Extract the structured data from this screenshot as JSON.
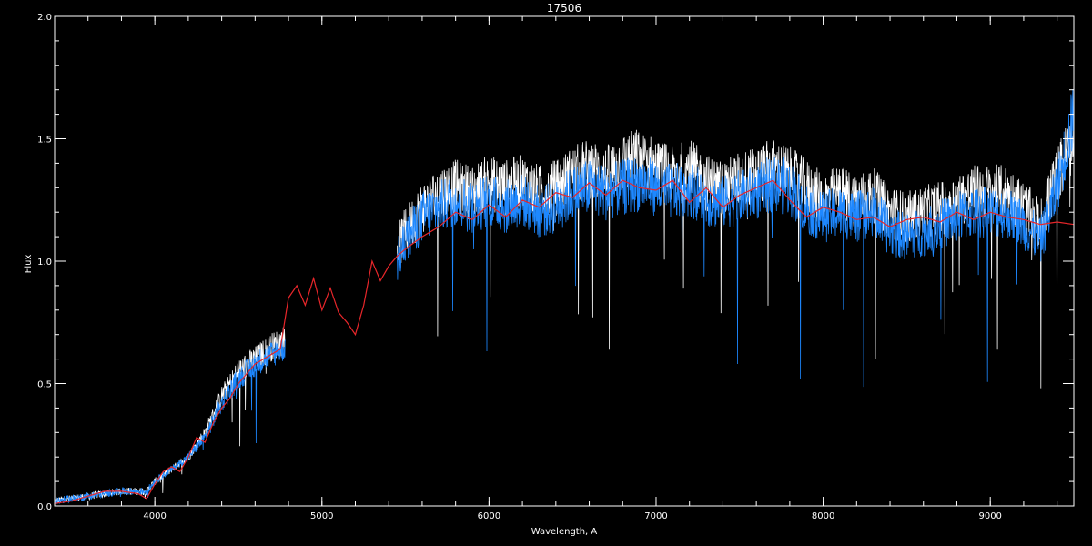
{
  "chart_data": {
    "type": "line",
    "title": "17506",
    "xlabel": "Wavelength, A",
    "ylabel": "Flux",
    "xlim": [
      3400,
      9500
    ],
    "ylim": [
      0.0,
      2.0
    ],
    "x_ticks": [
      4000,
      5000,
      6000,
      7000,
      8000,
      9000
    ],
    "x_tick_labels": [
      "4000",
      "5000",
      "6000",
      "7000",
      "8000",
      "9000"
    ],
    "y_ticks": [
      0.0,
      0.5,
      1.0,
      1.5,
      2.0
    ],
    "y_tick_labels": [
      "0.0",
      "0.5",
      "1.0",
      "1.5",
      "2.0"
    ],
    "grid": false,
    "background": "#000000",
    "series": [
      {
        "color": "#ffffff",
        "style": "noisy-spectrum",
        "x": [
          3400,
          3600,
          3800,
          3950,
          4000,
          4100,
          4200,
          4300,
          4400,
          4500,
          4600,
          4700,
          4780,
          5450,
          5500,
          5600,
          5700,
          5800,
          5900,
          6000,
          6100,
          6200,
          6300,
          6400,
          6500,
          6600,
          6700,
          6800,
          6900,
          7000,
          7100,
          7200,
          7300,
          7400,
          7500,
          7600,
          7700,
          7800,
          7900,
          8000,
          8100,
          8200,
          8300,
          8400,
          8500,
          8600,
          8700,
          8800,
          8900,
          9000,
          9100,
          9200,
          9300,
          9400,
          9500
        ],
        "y": [
          0.02,
          0.04,
          0.06,
          0.06,
          0.1,
          0.15,
          0.2,
          0.3,
          0.45,
          0.55,
          0.6,
          0.65,
          0.68,
          1.05,
          1.12,
          1.22,
          1.28,
          1.3,
          1.28,
          1.32,
          1.3,
          1.32,
          1.28,
          1.3,
          1.35,
          1.38,
          1.35,
          1.4,
          1.42,
          1.38,
          1.35,
          1.38,
          1.32,
          1.3,
          1.33,
          1.35,
          1.38,
          1.35,
          1.3,
          1.25,
          1.28,
          1.25,
          1.27,
          1.2,
          1.18,
          1.2,
          1.22,
          1.25,
          1.28,
          1.28,
          1.28,
          1.22,
          1.15,
          1.35,
          1.5
        ]
      },
      {
        "color": "#1e88ff",
        "style": "noisy-spectrum",
        "x": [
          3400,
          3600,
          3800,
          3950,
          4000,
          4100,
          4200,
          4300,
          4400,
          4500,
          4600,
          4700,
          4780,
          5450,
          5500,
          5600,
          5700,
          5800,
          5900,
          6000,
          6100,
          6200,
          6300,
          6400,
          6500,
          6600,
          6700,
          6800,
          6900,
          7000,
          7100,
          7200,
          7300,
          7400,
          7500,
          7600,
          7700,
          7800,
          7900,
          8000,
          8100,
          8200,
          8300,
          8400,
          8500,
          8600,
          8700,
          8800,
          8900,
          9000,
          9100,
          9200,
          9300,
          9400,
          9500
        ],
        "y": [
          0.02,
          0.04,
          0.06,
          0.06,
          0.1,
          0.15,
          0.2,
          0.28,
          0.42,
          0.52,
          0.58,
          0.62,
          0.65,
          1.0,
          1.08,
          1.18,
          1.22,
          1.25,
          1.22,
          1.25,
          1.22,
          1.25,
          1.2,
          1.22,
          1.28,
          1.3,
          1.28,
          1.3,
          1.32,
          1.3,
          1.28,
          1.3,
          1.25,
          1.24,
          1.26,
          1.28,
          1.32,
          1.3,
          1.22,
          1.18,
          1.2,
          1.18,
          1.2,
          1.12,
          1.1,
          1.12,
          1.15,
          1.18,
          1.2,
          1.2,
          1.2,
          1.15,
          1.08,
          1.3,
          1.6
        ]
      },
      {
        "color": "#e8262a",
        "style": "smooth",
        "x": [
          3400,
          3500,
          3600,
          3700,
          3800,
          3900,
          3950,
          4000,
          4050,
          4100,
          4150,
          4200,
          4250,
          4300,
          4350,
          4400,
          4450,
          4500,
          4550,
          4600,
          4650,
          4700,
          4750,
          4800,
          4850,
          4900,
          4950,
          5000,
          5050,
          5100,
          5150,
          5200,
          5250,
          5300,
          5350,
          5400,
          5450,
          5500,
          5600,
          5700,
          5800,
          5900,
          6000,
          6100,
          6200,
          6300,
          6400,
          6500,
          6600,
          6700,
          6800,
          6900,
          7000,
          7100,
          7200,
          7300,
          7400,
          7500,
          7600,
          7700,
          7800,
          7900,
          8000,
          8100,
          8200,
          8300,
          8400,
          8500,
          8600,
          8700,
          8800,
          8900,
          9000,
          9100,
          9200,
          9300,
          9400,
          9500
        ],
        "y": [
          0.01,
          0.02,
          0.04,
          0.06,
          0.06,
          0.05,
          0.03,
          0.09,
          0.14,
          0.16,
          0.14,
          0.2,
          0.28,
          0.26,
          0.34,
          0.4,
          0.44,
          0.5,
          0.54,
          0.58,
          0.6,
          0.62,
          0.64,
          0.85,
          0.9,
          0.82,
          0.93,
          0.8,
          0.89,
          0.79,
          0.75,
          0.7,
          0.82,
          1.0,
          0.92,
          0.98,
          1.02,
          1.05,
          1.1,
          1.14,
          1.2,
          1.17,
          1.23,
          1.18,
          1.25,
          1.22,
          1.28,
          1.26,
          1.32,
          1.27,
          1.33,
          1.3,
          1.29,
          1.33,
          1.24,
          1.3,
          1.22,
          1.27,
          1.3,
          1.33,
          1.25,
          1.18,
          1.22,
          1.2,
          1.17,
          1.18,
          1.14,
          1.17,
          1.18,
          1.16,
          1.2,
          1.17,
          1.2,
          1.18,
          1.17,
          1.15,
          1.16,
          1.15
        ]
      }
    ]
  }
}
